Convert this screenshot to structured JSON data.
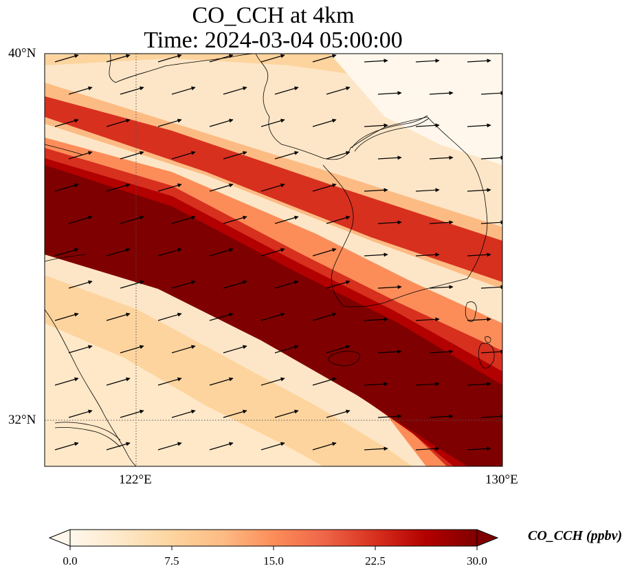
{
  "title": {
    "line1": "CO_CCH at 4km",
    "line2": "Time: 2024-03-04 05:00:00"
  },
  "map": {
    "lat_range": [
      31,
      40
    ],
    "lon_range": [
      120,
      130
    ],
    "lat_ticks": [
      "40°N",
      "32°N"
    ],
    "lon_ticks": [
      "122°E",
      "130°E"
    ],
    "gridlines": "dotted",
    "field": "CO_CCH",
    "field_description_visible": "high values in a broad band running from northwest to southeast across the domain",
    "wind_vectors": "arrows generally from west-southwest toward east-northeast"
  },
  "colorbar": {
    "label": "CO_CCH (ppbv)",
    "ticks": [
      "0.0",
      "7.5",
      "15.0",
      "22.5",
      "30.0"
    ],
    "range": [
      0,
      30
    ],
    "extend": "both",
    "colormap": "OrRd",
    "colors": [
      "#fff7ec",
      "#fee8c8",
      "#fdd49e",
      "#fdbb84",
      "#fc8d59",
      "#ef6548",
      "#d7301f",
      "#b30000",
      "#7f0000"
    ]
  }
}
